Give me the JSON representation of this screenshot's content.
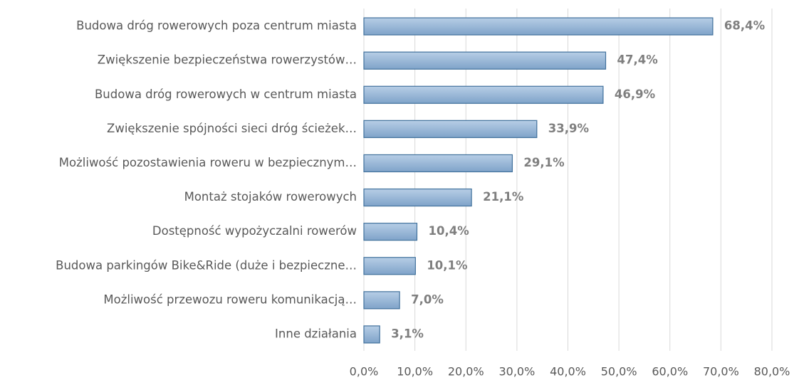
{
  "chart_data": {
    "type": "bar",
    "orientation": "horizontal",
    "categories": [
      "Budowa dróg rowerowych poza centrum miasta",
      "Zwiększenie bezpieczeństwa rowerzystów…",
      "Budowa dróg rowerowych w centrum miasta",
      "Zwiększenie spójności sieci dróg ścieżek…",
      "Możliwość pozostawienia roweru w bezpiecznym…",
      "Montaż stojaków rowerowych",
      "Dostępność wypożyczalni rowerów",
      "Budowa parkingów Bike&Ride (duże i bezpieczne…",
      "Możliwość przewozu roweru komunikacją…",
      "Inne działania"
    ],
    "values": [
      68.4,
      47.4,
      46.9,
      33.9,
      29.1,
      21.1,
      10.4,
      10.1,
      7.0,
      3.1
    ],
    "value_labels": [
      "68,4%",
      "47,4%",
      "46,9%",
      "33,9%",
      "29,1%",
      "21,1%",
      "10,4%",
      "10,1%",
      "7,0%",
      "3,1%"
    ],
    "color": "#8fb2d6",
    "xlim": [
      0,
      80
    ],
    "xticks": [
      {
        "value": 0,
        "label": "0,0%"
      },
      {
        "value": 10,
        "label": "10,0%"
      },
      {
        "value": 20,
        "label": "20,0%"
      },
      {
        "value": 30,
        "label": "30,0%"
      },
      {
        "value": 40,
        "label": "40,0%"
      },
      {
        "value": 50,
        "label": "50,0%"
      },
      {
        "value": 60,
        "label": "60,0%"
      },
      {
        "value": 70,
        "label": "70,0%"
      },
      {
        "value": 80,
        "label": "80,0%"
      }
    ],
    "grid": true
  }
}
